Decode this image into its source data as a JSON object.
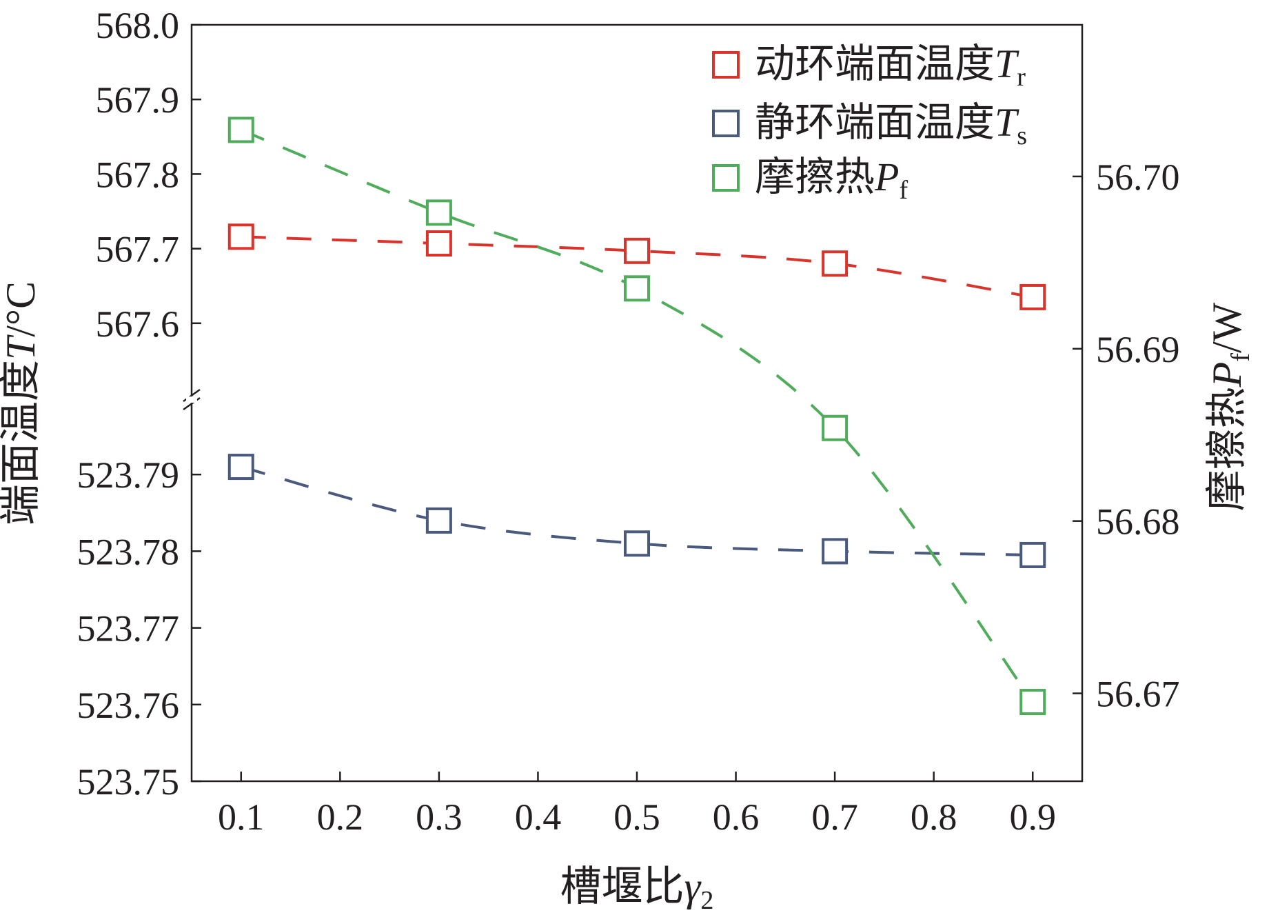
{
  "chart_data": {
    "type": "line",
    "xlabel": {
      "text": "槽堰比",
      "symbol": "γ",
      "sub": "2"
    },
    "ylabel_left": {
      "text": "端面温度",
      "symbol": "T",
      "unit": "/°C"
    },
    "ylabel_right": {
      "text": "摩擦热",
      "symbol": "P",
      "sub": "f",
      "unit": "/W"
    },
    "x_ticks": [
      "0.1",
      "0.2",
      "0.3",
      "0.4",
      "0.5",
      "0.6",
      "0.7",
      "0.8",
      "0.9"
    ],
    "xlim": [
      0.05,
      0.95
    ],
    "upper_axis": {
      "ylim": [
        567.5,
        568.0
      ],
      "ticks": [
        "568.0",
        "567.9",
        "567.8",
        "567.7",
        "567.6"
      ]
    },
    "lower_axis": {
      "ylim": [
        523.75,
        523.8
      ],
      "ticks": [
        "523.79",
        "523.78",
        "523.77",
        "523.76",
        "523.75"
      ]
    },
    "right_axis": {
      "ylim": [
        56.6649,
        56.7088
      ],
      "ticks": [
        "56.70",
        "56.69",
        "56.68",
        "56.67"
      ]
    },
    "x": [
      0.1,
      0.3,
      0.5,
      0.7,
      0.9
    ],
    "series": [
      {
        "name": "动环端面温度",
        "legend_symbol": "T",
        "legend_sub": "r",
        "axis": "upper",
        "color": "#d9342b",
        "values": [
          567.716,
          567.707,
          567.697,
          567.68,
          567.635
        ]
      },
      {
        "name": "静环端面温度",
        "legend_symbol": "T",
        "legend_sub": "s",
        "axis": "lower",
        "color": "#4a5a7d",
        "values": [
          523.791,
          523.784,
          523.781,
          523.78,
          523.7795
        ]
      },
      {
        "name": "摩擦热",
        "legend_symbol": "P",
        "legend_sub": "f",
        "axis": "right",
        "color": "#4fac5b",
        "values": [
          56.7027,
          56.6979,
          56.6935,
          56.6854,
          56.6695
        ]
      }
    ],
    "legend_position": "top-right"
  }
}
